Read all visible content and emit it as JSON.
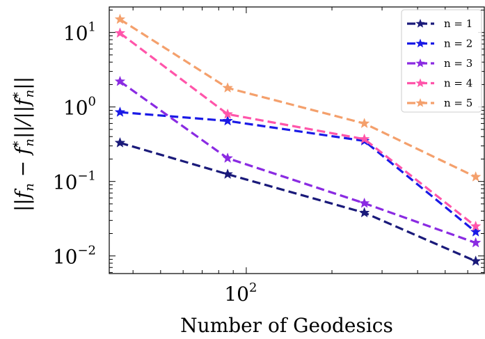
{
  "chart_data": {
    "type": "line",
    "xlabel": "Number of Geodesics",
    "ylabel": "||f_n − f*_n|| / ||f*_n||",
    "xscale": "log",
    "yscale": "log",
    "xlim": [
      33,
      690
    ],
    "ylim": [
      0.0058,
      22
    ],
    "x": [
      36,
      86,
      260,
      640
    ],
    "x_tick_labels": [
      {
        "value": 100,
        "base": "10",
        "exp": "2"
      }
    ],
    "y_tick_labels": [
      {
        "value": 10,
        "base": "10",
        "exp": "1"
      },
      {
        "value": 1,
        "base": "10",
        "exp": "0"
      },
      {
        "value": 0.1,
        "base": "10",
        "exp": "−1"
      },
      {
        "value": 0.01,
        "base": "10",
        "exp": "−2"
      }
    ],
    "legend_position": "top-right",
    "grid": false,
    "series": [
      {
        "name": "n = 1",
        "color": "#1a1a7a",
        "values": [
          0.33,
          0.125,
          0.038,
          0.0085
        ]
      },
      {
        "name": "n = 2",
        "color": "#1a1ae6",
        "values": [
          0.85,
          0.65,
          0.35,
          0.021
        ]
      },
      {
        "name": "n = 3",
        "color": "#8a2be2",
        "values": [
          2.2,
          0.205,
          0.051,
          0.015
        ]
      },
      {
        "name": "n = 4",
        "color": "#ff55aa",
        "values": [
          9.8,
          0.8,
          0.37,
          0.025
        ]
      },
      {
        "name": "n = 5",
        "color": "#f4a06c",
        "values": [
          15,
          1.8,
          0.6,
          0.115
        ]
      }
    ]
  }
}
